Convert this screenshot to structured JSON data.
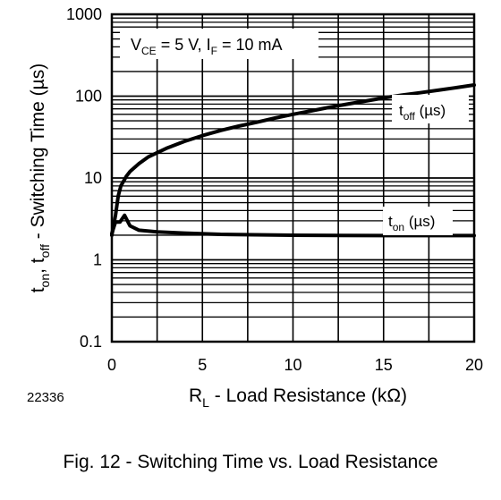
{
  "figure_id": "22336",
  "caption": "Fig. 12 - Switching Time vs. Load Resistance",
  "chart_data": {
    "type": "line",
    "title": "",
    "condition": {
      "vce_symbol": "V",
      "vce_sub": "CE",
      "vce_value": " = 5 V, ",
      "if_symbol": "I",
      "if_sub": "F",
      "if_value": " = 10 mA"
    },
    "xlabel": {
      "main": "R",
      "sub": "L",
      "rest": " - Load Resistance (kΩ)"
    },
    "ylabel": {
      "t1": "t",
      "s1": "on",
      "sep": ", t",
      "s2": "off",
      "rest": " - Switching Time (µs)"
    },
    "x_range": [
      0,
      20
    ],
    "y_range": [
      0.1,
      1000
    ],
    "y_scale": "log",
    "x_ticks": [
      "0",
      "5",
      "10",
      "15",
      "20"
    ],
    "y_ticks": [
      "0.1",
      "1",
      "10",
      "100",
      "1000"
    ],
    "grid": true,
    "series": [
      {
        "label_main": "t",
        "label_sub": "off",
        "label_rest": " (µs)",
        "points": [
          [
            0,
            2
          ],
          [
            0.2,
            3.5
          ],
          [
            0.35,
            6
          ],
          [
            0.5,
            8
          ],
          [
            0.8,
            10.5
          ],
          [
            1,
            12
          ],
          [
            1.5,
            15
          ],
          [
            2,
            18
          ],
          [
            3,
            23
          ],
          [
            4,
            28
          ],
          [
            5,
            33
          ],
          [
            6,
            38
          ],
          [
            7,
            43
          ],
          [
            8,
            48
          ],
          [
            9,
            54
          ],
          [
            10,
            60
          ],
          [
            11,
            66
          ],
          [
            12,
            73
          ],
          [
            13,
            80
          ],
          [
            14,
            87
          ],
          [
            15,
            95
          ],
          [
            16,
            103
          ],
          [
            17,
            110
          ],
          [
            18,
            118
          ],
          [
            19,
            127
          ],
          [
            20,
            137
          ]
        ]
      },
      {
        "label_main": "t",
        "label_sub": "on",
        "label_rest": " (µs)",
        "points": [
          [
            0,
            2.1
          ],
          [
            0.2,
            2.9
          ],
          [
            0.45,
            2.9
          ],
          [
            0.7,
            3.5
          ],
          [
            1,
            2.6
          ],
          [
            1.5,
            2.3
          ],
          [
            2.5,
            2.2
          ],
          [
            4,
            2.12
          ],
          [
            6,
            2.05
          ],
          [
            10,
            2
          ],
          [
            15,
            1.98
          ],
          [
            20,
            1.98
          ]
        ]
      }
    ]
  }
}
